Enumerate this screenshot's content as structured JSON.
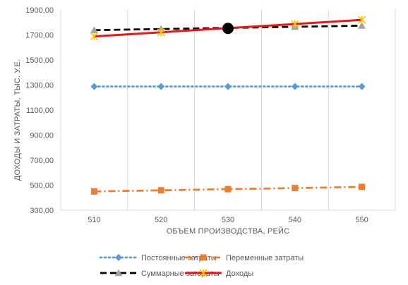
{
  "chart_data": {
    "type": "line",
    "title": "",
    "xlabel": "ОБЪЕМ ПРОИЗВОДСТВА, РЕЙС",
    "ylabel": "ДОХОДЫ И ЗАТРАТЫ, ТЫС. У.Е.",
    "x": [
      510,
      520,
      530,
      540,
      550
    ],
    "x_tick_labels": [
      "510",
      "520",
      "530",
      "540",
      "550"
    ],
    "ylim": [
      300,
      1900
    ],
    "y_ticks": [
      300,
      500,
      700,
      900,
      1100,
      1300,
      1500,
      1700,
      1900
    ],
    "y_tick_labels": [
      "300,00",
      "500,00",
      "700,00",
      "900,00",
      "1100,00",
      "1300,00",
      "1500,00",
      "1700,00",
      "1900,00"
    ],
    "grid": "vertical",
    "legend_position": "bottom",
    "series": [
      {
        "name": "Постоянные затраты",
        "values": [
          1288,
          1288,
          1288,
          1288,
          1288
        ],
        "color": "#5b9bd5",
        "line": "dotted",
        "marker": "diamond"
      },
      {
        "name": "Переменные затраты",
        "values": [
          450,
          459,
          468,
          477,
          486
        ],
        "color": "#ed7d31",
        "line": "dash-dot",
        "marker": "square"
      },
      {
        "name": "Суммарные затараты",
        "values": [
          1738,
          1747,
          1756,
          1765,
          1774
        ],
        "color": "#000000",
        "line": "dashed",
        "marker": "triangle",
        "marker_color": "#a5a5a5"
      },
      {
        "name": "Доходы",
        "values": [
          1688,
          1721,
          1754,
          1787,
          1820
        ],
        "color": "#e31a1a",
        "line": "solid",
        "marker": "star",
        "marker_color": "#ffc000"
      }
    ],
    "annotations": [
      {
        "type": "break-even-point",
        "x": 530,
        "y": 1752,
        "color": "#000000"
      }
    ]
  }
}
